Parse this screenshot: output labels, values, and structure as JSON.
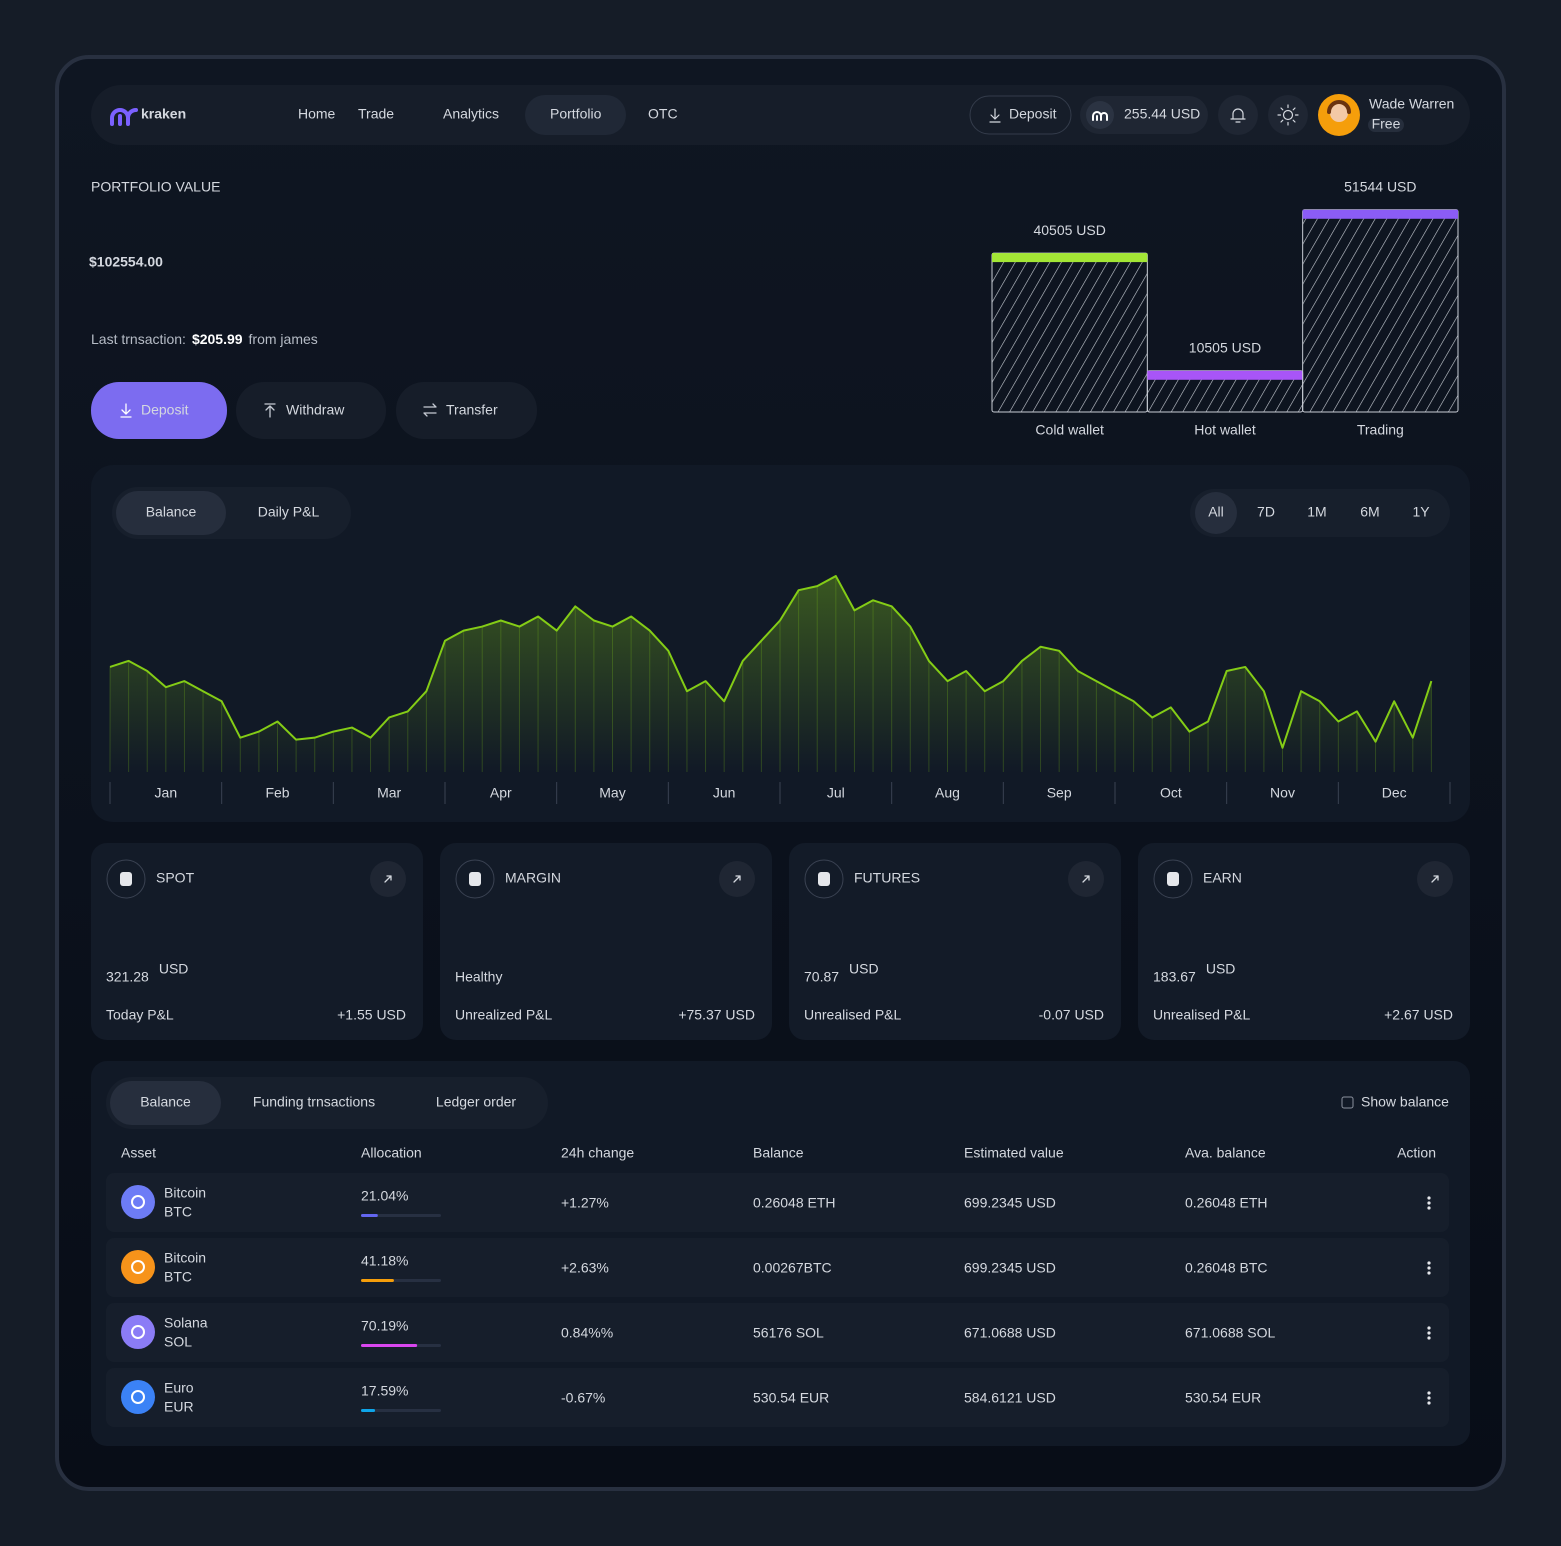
{
  "nav": {
    "logo": "kraken",
    "links": [
      "Home",
      "Trade",
      "Analytics",
      "Portfolio",
      "OTC"
    ],
    "active": 3,
    "deposit": "Deposit",
    "balance": "255.44 USD",
    "user": "Wade Warren",
    "plan": "Free"
  },
  "portfolio": {
    "label": "PORTFOLIO VALUE",
    "value": "$102554.00",
    "last_prefix": "Last trnsaction:",
    "last_amount": "$205.99",
    "last_suffix": "from james",
    "buttons": [
      "Deposit",
      "Withdraw",
      "Transfer"
    ]
  },
  "chart_tabs": {
    "tabs": [
      "Balance",
      "Daily P&L"
    ],
    "active": 0,
    "ranges": [
      "All",
      "7D",
      "1M",
      "6M",
      "1Y"
    ],
    "range_active": 0
  },
  "chart_data": [
    {
      "type": "bar",
      "categories": [
        "Cold wallet",
        "Hot wallet",
        "Trading"
      ],
      "values": [
        40505,
        10505,
        51544
      ],
      "value_labels": [
        "40505 USD",
        "10505 USD",
        "51544 USD"
      ],
      "colors": [
        "#a3e635",
        "#a855f7",
        "#8b5cf6"
      ],
      "ylim": [
        0,
        52000
      ]
    },
    {
      "type": "line",
      "color": "#84cc16",
      "xlim": [
        0,
        72
      ],
      "ylim": [
        0,
        100
      ],
      "x": [
        0,
        1,
        2,
        3,
        4,
        5,
        6,
        7,
        8,
        9,
        10,
        11,
        12,
        13,
        14,
        15,
        16,
        17,
        18,
        19,
        20,
        21,
        22,
        23,
        24,
        25,
        26,
        27,
        28,
        29,
        30,
        31,
        32,
        33,
        34,
        35,
        36,
        37,
        38,
        39,
        40,
        41,
        42,
        43,
        44,
        45,
        46,
        47,
        48,
        49,
        50,
        51,
        52,
        53,
        54,
        55,
        56,
        57,
        58,
        59,
        60,
        61,
        62,
        63,
        64,
        65,
        66,
        67,
        68,
        69,
        70,
        71
      ],
      "values": [
        52,
        55,
        50,
        42,
        45,
        40,
        35,
        17,
        20,
        25,
        16,
        17,
        20,
        22,
        17,
        27,
        30,
        40,
        65,
        70,
        72,
        75,
        72,
        77,
        70,
        82,
        75,
        72,
        77,
        70,
        60,
        40,
        45,
        35,
        55,
        65,
        75,
        90,
        92,
        97,
        80,
        85,
        82,
        72,
        55,
        45,
        50,
        40,
        45,
        55,
        62,
        60,
        50,
        45,
        40,
        35,
        27,
        32,
        20,
        25,
        50,
        52,
        40,
        12,
        40,
        35,
        25,
        30,
        15,
        35,
        17,
        45
      ],
      "xticks": [
        {
          "value": 3,
          "label": "Jan"
        },
        {
          "value": 9,
          "label": "Feb"
        },
        {
          "value": 15,
          "label": "Mar"
        },
        {
          "value": 21,
          "label": "Apr"
        },
        {
          "value": 27,
          "label": "May"
        },
        {
          "value": 33,
          "label": "Jun"
        },
        {
          "value": 39,
          "label": "Jul"
        },
        {
          "value": 45,
          "label": "Aug"
        },
        {
          "value": 51,
          "label": "Sep"
        },
        {
          "value": 57,
          "label": "Oct"
        },
        {
          "value": 63,
          "label": "Nov"
        },
        {
          "value": 69,
          "label": "Dec"
        }
      ]
    }
  ],
  "cards": [
    {
      "title": "SPOT",
      "value": "321.28",
      "unit": "USD",
      "label": "Today P&L",
      "change": "+1.55 USD",
      "change_color": "#22c55e"
    },
    {
      "title": "MARGIN",
      "value": "Healthy",
      "label": "Unrealized P&L",
      "change": "+75.37 USD",
      "change_color": "#22c55e"
    },
    {
      "title": "FUTURES",
      "value": "70.87",
      "unit": "USD",
      "label": "Unrealised P&L",
      "change": "-0.07 USD",
      "change_color": "#ef4444"
    },
    {
      "title": "EARN",
      "value": "183.67",
      "unit": "USD",
      "label": "Unrealised P&L",
      "change": "+2.67 USD",
      "change_color": "#22c55e"
    }
  ],
  "table": {
    "tabs": [
      "Balance",
      "Funding trnsactions",
      "Ledger order"
    ],
    "active": 0,
    "toggle": "Show balance",
    "headers": [
      "Asset",
      "Allocation",
      "24h change",
      "Balance",
      "Estimated value",
      "Ava. balance",
      "Action"
    ],
    "rows": [
      {
        "name": "Bitcoin",
        "ticker": "BTC",
        "icon_color": "#6d7cf6",
        "allocation": 21.04,
        "allocation_label": "21.04%",
        "bar_color": "#6366f1",
        "change": "+1.27%",
        "change_color": "#22c55e",
        "balance": "0.26048 ETH",
        "estimated": "699.2345 USD",
        "available": "0.26048 ETH"
      },
      {
        "name": "Bitcoin",
        "ticker": "BTC",
        "icon_color": "#f7931a",
        "allocation": 41.18,
        "allocation_label": "41.18%",
        "bar_color": "#f59e0b",
        "change": "+2.63%",
        "change_color": "#22c55e",
        "balance": "0.00267BTC",
        "estimated": "699.2345 USD",
        "available": "0.26048 BTC"
      },
      {
        "name": "Solana",
        "ticker": "SOL",
        "icon_color": "#8b7cf6",
        "allocation": 70.19,
        "allocation_label": "70.19%",
        "bar_color": "#d946ef",
        "change": "0.84%%",
        "change_color": "#22c55e",
        "balance": "56176 SOL",
        "estimated": "671.0688 USD",
        "available": "671.0688 SOL"
      },
      {
        "name": "Euro",
        "ticker": "EUR",
        "icon_color": "#3b82f6",
        "allocation": 17.59,
        "allocation_label": "17.59%",
        "bar_color": "#0ea5e9",
        "change": "-0.67%",
        "change_color": "#ef4444",
        "balance": "530.54 EUR",
        "estimated": "584.6121 USD",
        "available": "530.54 EUR"
      }
    ]
  }
}
